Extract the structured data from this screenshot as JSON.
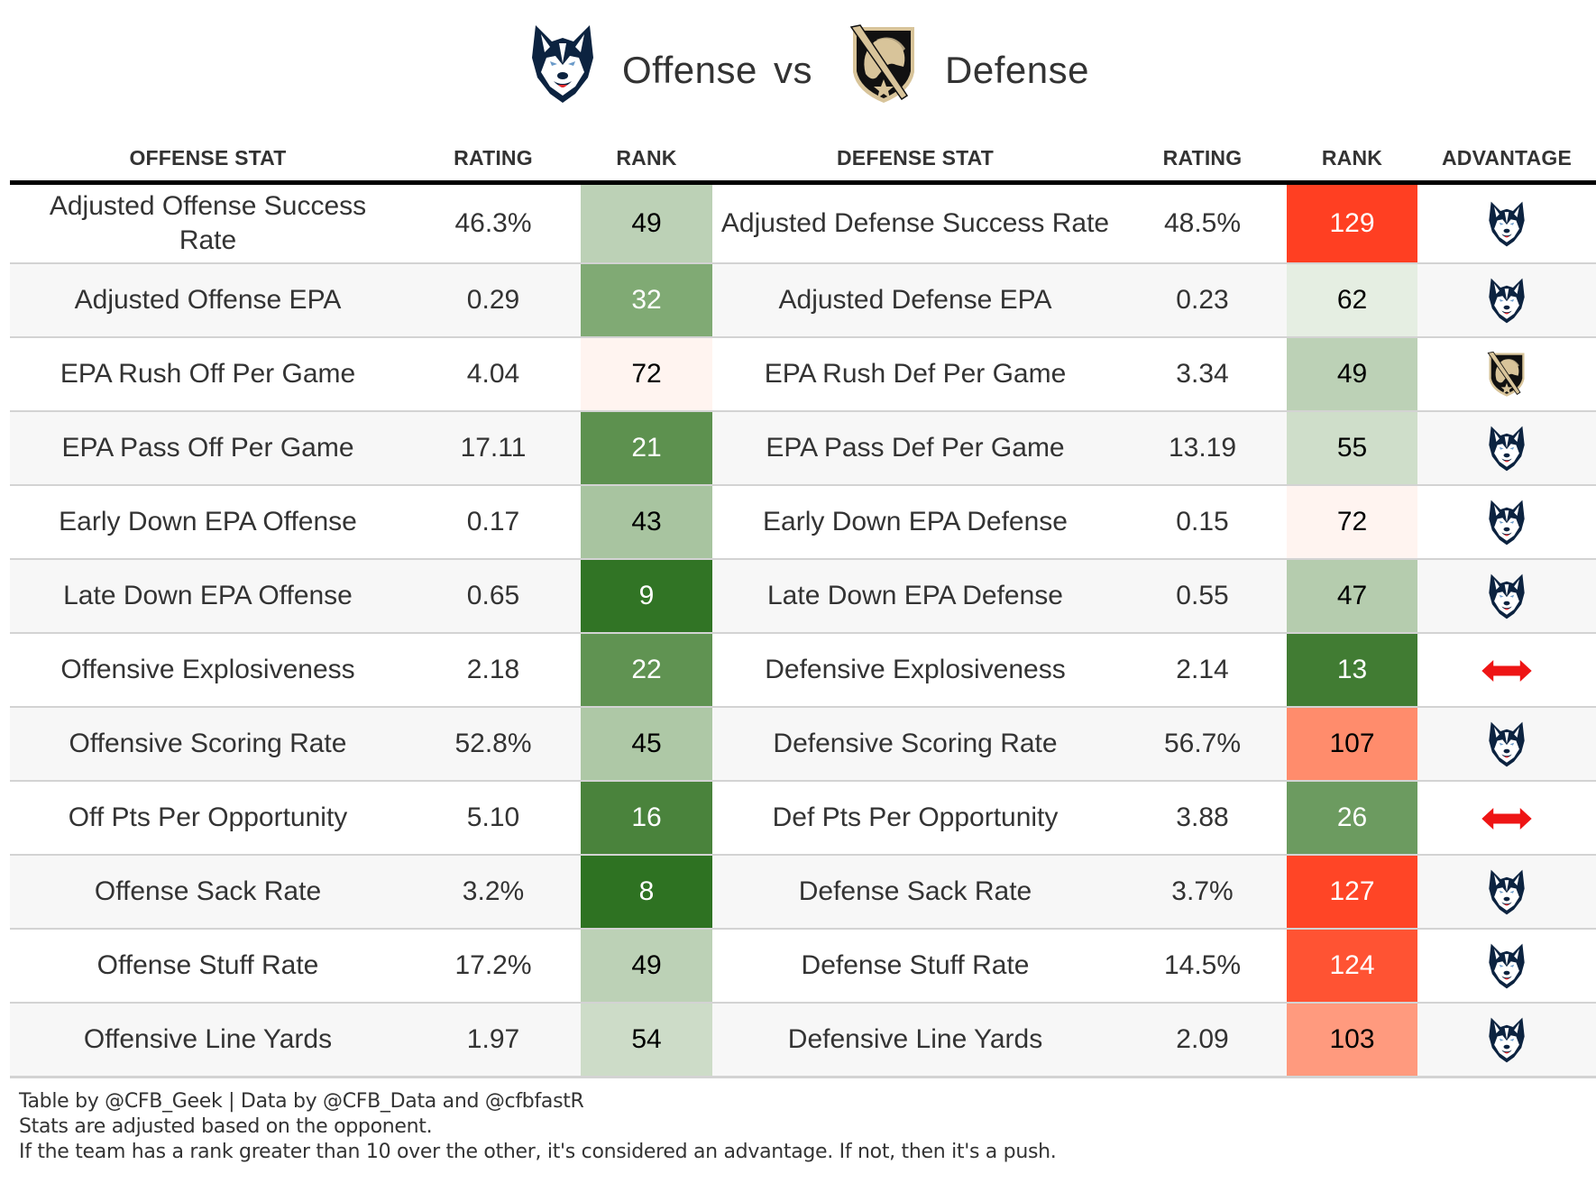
{
  "title": {
    "offense_logo": "uconn-husky-logo",
    "offense_label": "Offense",
    "vs_label": "vs",
    "defense_logo": "army-black-knight-logo",
    "defense_label": "Defense"
  },
  "table": {
    "headers": {
      "offense_stat": "OFFENSE STAT",
      "offense_rating": "RATING",
      "offense_rank": "RANK",
      "defense_stat": "DEFENSE STAT",
      "defense_rating": "RATING",
      "defense_rank": "RANK",
      "advantage": "ADVANTAGE"
    },
    "rows": [
      {
        "offense_stat": "Adjusted Offense Success Rate",
        "offense_rating": "46.3%",
        "offense_rank": "49",
        "offense_rank_color": "#bcd1b6",
        "offense_rank_text": "#000000",
        "defense_stat": "Adjusted Defense Success Rate",
        "defense_rating": "48.5%",
        "defense_rank": "129",
        "defense_rank_color": "#ff3f22",
        "defense_rank_text": "#ffffff",
        "advantage": "uconn-husky-icon"
      },
      {
        "offense_stat": "Adjusted Offense EPA",
        "offense_rating": "0.29",
        "offense_rank": "32",
        "offense_rank_color": "#80aa74",
        "offense_rank_text": "#ffffff",
        "defense_stat": "Adjusted Defense EPA",
        "defense_rating": "0.23",
        "defense_rank": "62",
        "defense_rank_color": "#e5eee2",
        "defense_rank_text": "#000000",
        "advantage": "uconn-husky-icon"
      },
      {
        "offense_stat": "EPA Rush Off Per Game",
        "offense_rating": "4.04",
        "offense_rank": "72",
        "offense_rank_color": "#fff4f0",
        "offense_rank_text": "#000000",
        "defense_stat": "EPA Rush Def Per Game",
        "defense_rating": "3.34",
        "defense_rank": "49",
        "defense_rank_color": "#bcd1b6",
        "defense_rank_text": "#000000",
        "advantage": "army-black-knight-icon"
      },
      {
        "offense_stat": "EPA Pass Off Per Game",
        "offense_rating": "17.11",
        "offense_rank": "21",
        "offense_rank_color": "#5d914f",
        "offense_rank_text": "#ffffff",
        "defense_stat": "EPA Pass Def Per Game",
        "defense_rating": "13.19",
        "defense_rank": "55",
        "defense_rank_color": "#cfdeca",
        "defense_rank_text": "#000000",
        "advantage": "uconn-husky-icon"
      },
      {
        "offense_stat": "Early Down EPA Offense",
        "offense_rating": "0.17",
        "offense_rank": "43",
        "offense_rank_color": "#a8c4a0",
        "offense_rank_text": "#000000",
        "defense_stat": "Early Down EPA Defense",
        "defense_rating": "0.15",
        "defense_rank": "72",
        "defense_rank_color": "#fff4f0",
        "defense_rank_text": "#000000",
        "advantage": "uconn-husky-icon"
      },
      {
        "offense_stat": "Late Down EPA Offense",
        "offense_rating": "0.65",
        "offense_rank": "9",
        "offense_rank_color": "#317425",
        "offense_rank_text": "#ffffff",
        "defense_stat": "Late Down EPA Defense",
        "defense_rating": "0.55",
        "defense_rank": "47",
        "defense_rank_color": "#b5ccae",
        "defense_rank_text": "#000000",
        "advantage": "uconn-husky-icon"
      },
      {
        "offense_stat": "Offensive Explosiveness",
        "offense_rating": "2.18",
        "offense_rank": "22",
        "offense_rank_color": "#609352",
        "offense_rank_text": "#ffffff",
        "defense_stat": "Defensive Explosiveness",
        "defense_rating": "2.14",
        "defense_rank": "13",
        "defense_rank_color": "#417c33",
        "defense_rank_text": "#ffffff",
        "advantage": "push-arrow-icon"
      },
      {
        "offense_stat": "Offensive Scoring Rate",
        "offense_rating": "52.8%",
        "offense_rank": "45",
        "offense_rank_color": "#aec8a6",
        "offense_rank_text": "#000000",
        "defense_stat": "Defensive Scoring Rate",
        "defense_rating": "56.7%",
        "defense_rank": "107",
        "defense_rank_color": "#ff8c6c",
        "defense_rank_text": "#000000",
        "advantage": "uconn-husky-icon"
      },
      {
        "offense_stat": "Off Pts Per Opportunity",
        "offense_rating": "5.10",
        "offense_rank": "16",
        "offense_rank_color": "#4a833c",
        "offense_rank_text": "#ffffff",
        "defense_stat": "Def Pts Per Opportunity",
        "defense_rating": "3.88",
        "defense_rank": "26",
        "defense_rank_color": "#6c9b60",
        "defense_rank_text": "#ffffff",
        "advantage": "push-arrow-icon"
      },
      {
        "offense_stat": "Offense Sack Rate",
        "offense_rating": "3.2%",
        "offense_rank": "8",
        "offense_rank_color": "#2e7222",
        "offense_rank_text": "#ffffff",
        "defense_stat": "Defense Sack Rate",
        "defense_rating": "3.7%",
        "defense_rank": "127",
        "defense_rank_color": "#ff4526",
        "defense_rank_text": "#ffffff",
        "advantage": "uconn-husky-icon"
      },
      {
        "offense_stat": "Offense Stuff Rate",
        "offense_rating": "17.2%",
        "offense_rank": "49",
        "offense_rank_color": "#bcd1b6",
        "offense_rank_text": "#000000",
        "defense_stat": "Defense Stuff Rate",
        "defense_rating": "14.5%",
        "defense_rank": "124",
        "defense_rank_color": "#ff5333",
        "defense_rank_text": "#ffffff",
        "advantage": "uconn-husky-icon"
      },
      {
        "offense_stat": "Offensive Line Yards",
        "offense_rating": "1.97",
        "offense_rank": "54",
        "offense_rank_color": "#cddcc8",
        "offense_rank_text": "#000000",
        "defense_stat": "Defensive Line Yards",
        "defense_rating": "2.09",
        "defense_rank": "103",
        "defense_rank_color": "#ff9a7e",
        "defense_rank_text": "#000000",
        "advantage": "uconn-husky-icon"
      }
    ]
  },
  "footer": {
    "line1": "Table by @CFB_Geek | Data by @CFB_Data and @cfbfastR",
    "line2": "Stats are adjusted based on the opponent.",
    "line3": "If the team has a rank greater than 10 over the other, it's considered an advantage. If not, then it's a push."
  }
}
